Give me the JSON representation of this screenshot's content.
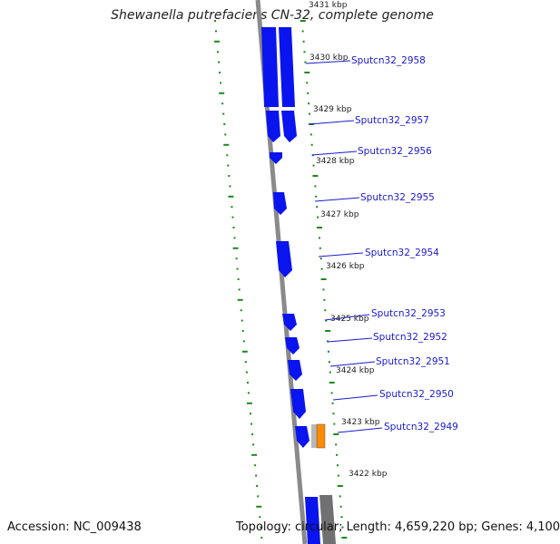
{
  "title": "Shewanella putrefaciens CN-32, complete genome",
  "footer": {
    "accession": "Accession: NC_009438",
    "summary": "Topology: circular; Length: 4,659,220 bp; Genes: 4,100"
  },
  "colors": {
    "gene": "#0a14ee",
    "gene_highlight": "#ff8a00",
    "backbone": "#8a8a8a",
    "tick": "#1a8a1a",
    "label_line": "#1a1acc",
    "kbp_text": "#222222"
  },
  "kbp_labels": [
    "3431 kbp",
    "3430 kbp",
    "3429 kbp",
    "3428 kbp",
    "3427 kbp",
    "3426 kbp",
    "3425 kbp",
    "3424 kbp",
    "3423 kbp",
    "3422 kbp"
  ],
  "genes": [
    {
      "label": "Sputcn32_2958"
    },
    {
      "label": "Sputcn32_2957"
    },
    {
      "label": "Sputcn32_2956"
    },
    {
      "label": "Sputcn32_2955"
    },
    {
      "label": "Sputcn32_2954"
    },
    {
      "label": "Sputcn32_2953"
    },
    {
      "label": "Sputcn32_2952"
    },
    {
      "label": "Sputcn32_2951"
    },
    {
      "label": "Sputcn32_2950"
    },
    {
      "label": "Sputcn32_2949"
    }
  ]
}
